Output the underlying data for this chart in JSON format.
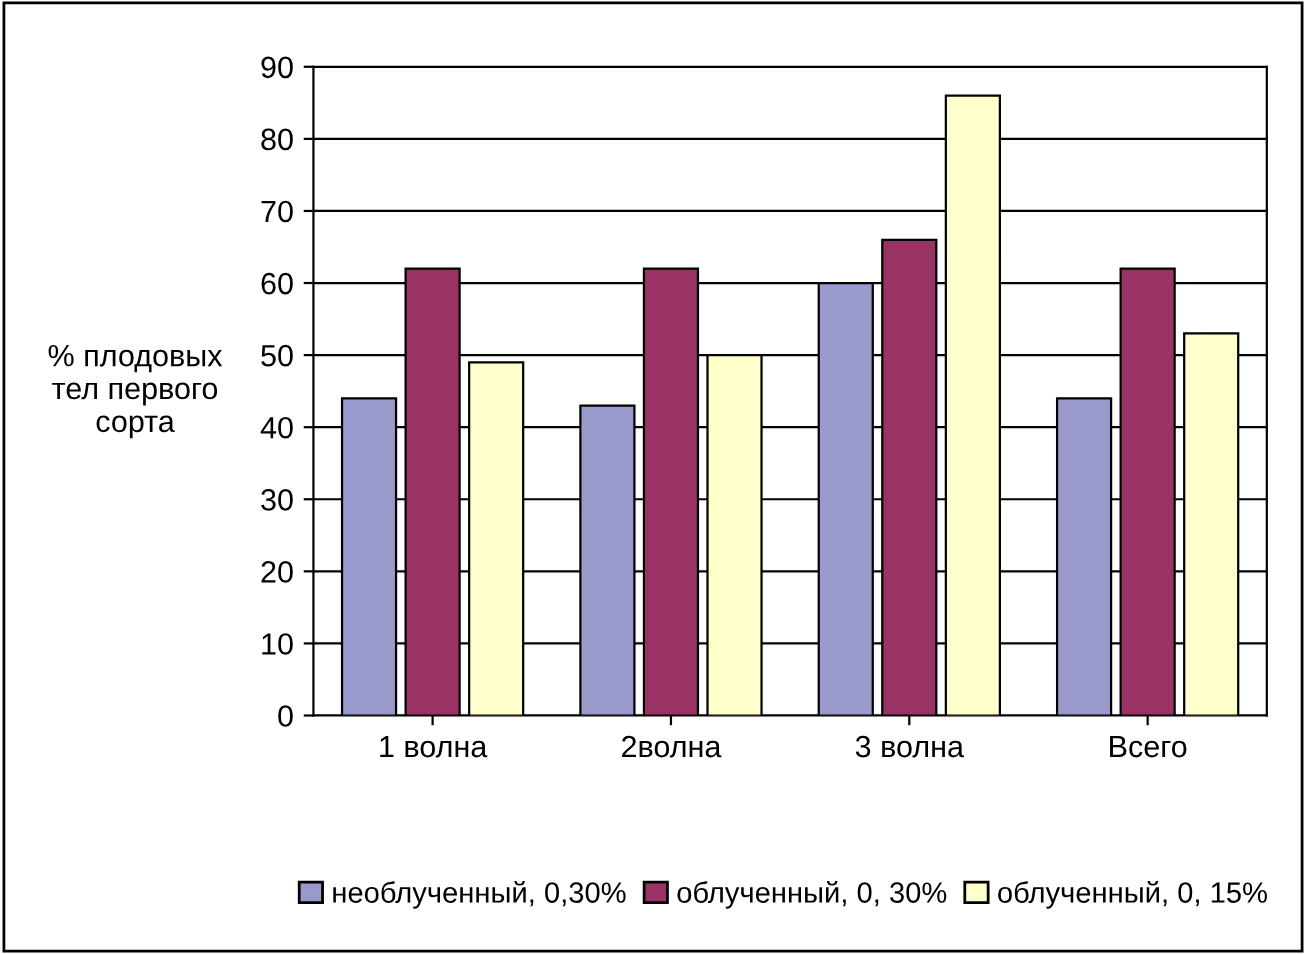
{
  "chart_data": {
    "type": "bar",
    "ylabel": "% плодовых\nтел первого\nсорта",
    "categories": [
      "1 волна",
      "2волна",
      "3 волна",
      "Всего"
    ],
    "series": [
      {
        "name": "необлученный, 0,30%",
        "color": "#9999cc",
        "values": [
          44,
          43,
          60,
          44
        ]
      },
      {
        "name": "облученный, 0, 30%",
        "color": "#993366",
        "values": [
          62,
          62,
          66,
          62
        ]
      },
      {
        "name": "облученный, 0, 15%",
        "color": "#ffffcc",
        "values": [
          49,
          50,
          86,
          53
        ]
      }
    ],
    "ylim": [
      0,
      90
    ],
    "yticks": [
      0,
      10,
      20,
      30,
      40,
      50,
      60,
      70,
      80,
      90
    ],
    "grid": "y",
    "legend": "bottom"
  }
}
